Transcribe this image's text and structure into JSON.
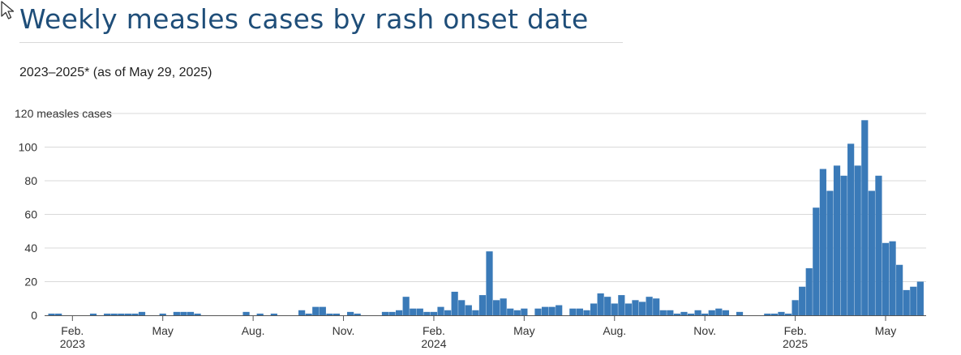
{
  "title": "Weekly measles cases by rash onset date",
  "subtitle": "2023–2025* (as of May 29, 2025)",
  "colors": {
    "bar": "#3a7ab8",
    "title": "#1f4e79",
    "grid": "#d9d9d9"
  },
  "chart_data": {
    "type": "bar",
    "title": "Weekly measles cases by rash onset date",
    "subtitle": "2023–2025* (as of May 29, 2025)",
    "xlabel": "",
    "ylabel": "measles cases",
    "ylim": [
      0,
      120
    ],
    "y_ticks": [
      {
        "value": 0,
        "label": "0"
      },
      {
        "value": 20,
        "label": "20"
      },
      {
        "value": 40,
        "label": "40"
      },
      {
        "value": 60,
        "label": "60"
      },
      {
        "value": 80,
        "label": "80"
      },
      {
        "value": 100,
        "label": "100"
      },
      {
        "value": 120,
        "label": "120 measles cases"
      }
    ],
    "x_ticks": [
      {
        "week": 3,
        "label": "Feb.",
        "year": "2023"
      },
      {
        "week": 16,
        "label": "May",
        "year": ""
      },
      {
        "week": 29,
        "label": "Aug.",
        "year": ""
      },
      {
        "week": 42,
        "label": "Nov.",
        "year": ""
      },
      {
        "week": 55,
        "label": "Feb.",
        "year": "2024"
      },
      {
        "week": 68,
        "label": "May",
        "year": ""
      },
      {
        "week": 81,
        "label": "Aug.",
        "year": ""
      },
      {
        "week": 94,
        "label": "Nov.",
        "year": ""
      },
      {
        "week": 107,
        "label": "Feb.",
        "year": "2025"
      },
      {
        "week": 120,
        "label": "May",
        "year": ""
      }
    ],
    "grid": true,
    "values": [
      1,
      1,
      0,
      0,
      0,
      0,
      1,
      0,
      1,
      1,
      1,
      1,
      1,
      2,
      0,
      0,
      1,
      0,
      2,
      2,
      2,
      1,
      0,
      0,
      0,
      0,
      0,
      0,
      2,
      0,
      1,
      0,
      1,
      0,
      0,
      0,
      3,
      1,
      5,
      5,
      1,
      1,
      0,
      2,
      1,
      0,
      0,
      0,
      2,
      2,
      3,
      11,
      4,
      4,
      2,
      2,
      5,
      3,
      14,
      9,
      6,
      3,
      12,
      38,
      9,
      10,
      4,
      3,
      4,
      0,
      4,
      5,
      5,
      6,
      0,
      4,
      4,
      3,
      7,
      13,
      11,
      7,
      12,
      7,
      9,
      8,
      11,
      10,
      3,
      3,
      1,
      2,
      1,
      3,
      1,
      3,
      4,
      3,
      0,
      2,
      0,
      0,
      0,
      1,
      1,
      2,
      1,
      9,
      17,
      28,
      64,
      87,
      74,
      89,
      83,
      102,
      89,
      116,
      74,
      83,
      43,
      44,
      30,
      15,
      17,
      20
    ]
  }
}
